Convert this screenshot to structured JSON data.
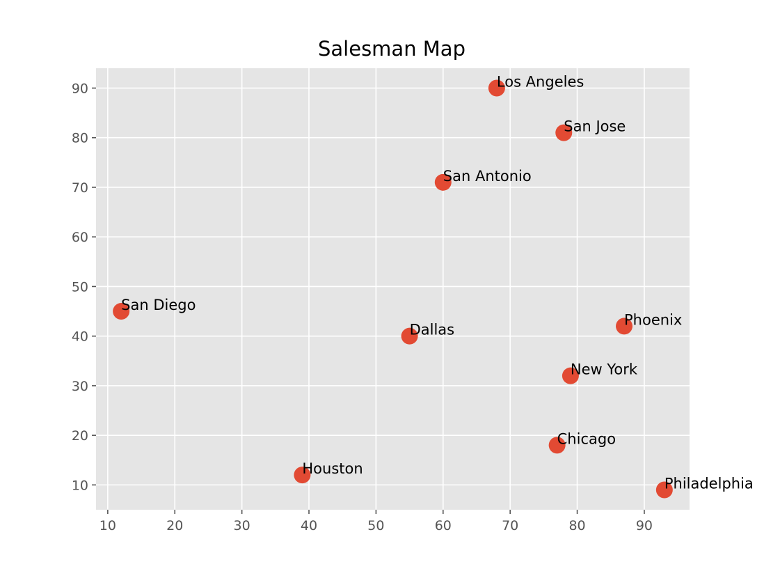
{
  "chart_data": {
    "type": "scatter",
    "title": "Salesman Map",
    "xlabel": "",
    "ylabel": "",
    "xlim": [
      8.25,
      96.75
    ],
    "ylim": [
      5.0,
      94.0
    ],
    "xticks": [
      10,
      20,
      30,
      40,
      50,
      60,
      70,
      80,
      90
    ],
    "yticks": [
      10,
      20,
      30,
      40,
      50,
      60,
      70,
      80,
      90
    ],
    "grid": true,
    "background_color": "#E5E5E5",
    "marker_color": "#E24A33",
    "points": [
      {
        "label": "Los Angeles",
        "x": 68,
        "y": 90
      },
      {
        "label": "San Jose",
        "x": 78,
        "y": 81
      },
      {
        "label": "San Antonio",
        "x": 60,
        "y": 71
      },
      {
        "label": "San Diego",
        "x": 12,
        "y": 45
      },
      {
        "label": "Dallas",
        "x": 55,
        "y": 40
      },
      {
        "label": "Phoenix",
        "x": 87,
        "y": 42
      },
      {
        "label": "New York",
        "x": 79,
        "y": 32
      },
      {
        "label": "Chicago",
        "x": 77,
        "y": 18
      },
      {
        "label": "Houston",
        "x": 39,
        "y": 12
      },
      {
        "label": "Philadelphia",
        "x": 93,
        "y": 9
      }
    ]
  }
}
